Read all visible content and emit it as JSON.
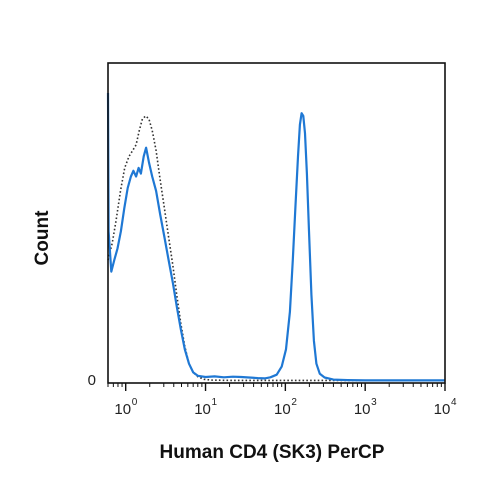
{
  "chart_data": {
    "type": "line",
    "title": "",
    "xlabel": "Human CD4 (SK3) PerCP",
    "ylabel": "Count",
    "x_scale": "log",
    "xlim": [
      0.6,
      10000
    ],
    "ylim": [
      0,
      100
    ],
    "y_ticks": [
      {
        "value": 0,
        "label": "0"
      }
    ],
    "x_ticks": [
      {
        "value": 1,
        "base": "10",
        "exp": "0"
      },
      {
        "value": 10,
        "base": "10",
        "exp": "1"
      },
      {
        "value": 100,
        "base": "10",
        "exp": "2"
      },
      {
        "value": 1000,
        "base": "10",
        "exp": "3"
      },
      {
        "value": 10000,
        "base": "10",
        "exp": "4"
      }
    ],
    "grid": false,
    "legend": "none",
    "series": [
      {
        "style": "solid",
        "color": "#1f78d4",
        "points": [
          [
            0.6,
            100
          ],
          [
            0.61,
            52
          ],
          [
            0.66,
            38
          ],
          [
            0.72,
            42
          ],
          [
            0.79,
            46
          ],
          [
            0.87,
            52
          ],
          [
            0.96,
            60
          ],
          [
            1.06,
            67
          ],
          [
            1.16,
            71
          ],
          [
            1.25,
            73
          ],
          [
            1.35,
            71
          ],
          [
            1.45,
            74
          ],
          [
            1.55,
            72
          ],
          [
            1.68,
            78
          ],
          [
            1.8,
            81
          ],
          [
            1.95,
            76
          ],
          [
            2.15,
            71
          ],
          [
            2.4,
            66
          ],
          [
            2.7,
            58
          ],
          [
            3.05,
            50
          ],
          [
            3.45,
            42
          ],
          [
            3.9,
            34
          ],
          [
            4.35,
            26
          ],
          [
            4.9,
            18
          ],
          [
            5.5,
            11
          ],
          [
            6.2,
            6
          ],
          [
            7.0,
            3
          ],
          [
            8.0,
            1.8
          ],
          [
            10,
            1.4
          ],
          [
            13,
            1.6
          ],
          [
            17,
            1.3
          ],
          [
            22,
            1.5
          ],
          [
            28,
            1.4
          ],
          [
            35,
            1.2
          ],
          [
            45,
            1.0
          ],
          [
            55,
            0.9
          ],
          [
            65,
            1.3
          ],
          [
            78,
            2.2
          ],
          [
            90,
            5
          ],
          [
            102,
            11
          ],
          [
            114,
            24
          ],
          [
            124,
            42
          ],
          [
            134,
            61
          ],
          [
            144,
            78
          ],
          [
            152,
            89
          ],
          [
            160,
            93
          ],
          [
            168,
            92
          ],
          [
            176,
            86
          ],
          [
            186,
            72
          ],
          [
            198,
            52
          ],
          [
            212,
            30
          ],
          [
            228,
            14
          ],
          [
            245,
            6
          ],
          [
            270,
            2.5
          ],
          [
            310,
            1.2
          ],
          [
            400,
            0.5
          ],
          [
            600,
            0.3
          ],
          [
            1000,
            0.2
          ],
          [
            10000,
            0.2
          ]
        ]
      },
      {
        "style": "dotted",
        "color": "#333333",
        "points": [
          [
            0.6,
            42
          ],
          [
            0.68,
            48
          ],
          [
            0.76,
            56
          ],
          [
            0.86,
            66
          ],
          [
            0.97,
            74
          ],
          [
            1.1,
            78
          ],
          [
            1.22,
            80
          ],
          [
            1.35,
            82
          ],
          [
            1.48,
            87
          ],
          [
            1.62,
            91
          ],
          [
            1.78,
            92
          ],
          [
            1.95,
            91
          ],
          [
            2.15,
            87
          ],
          [
            2.4,
            80
          ],
          [
            2.7,
            70
          ],
          [
            3.05,
            60
          ],
          [
            3.45,
            50
          ],
          [
            3.9,
            40
          ],
          [
            4.35,
            30
          ],
          [
            4.9,
            20
          ],
          [
            5.5,
            12
          ],
          [
            6.2,
            6
          ],
          [
            7.0,
            3
          ],
          [
            8.0,
            1.5
          ],
          [
            9.5,
            0.6
          ],
          [
            12,
            0.3
          ],
          [
            20,
            0.2
          ],
          [
            50,
            0.2
          ],
          [
            10000,
            0.2
          ]
        ]
      }
    ]
  }
}
